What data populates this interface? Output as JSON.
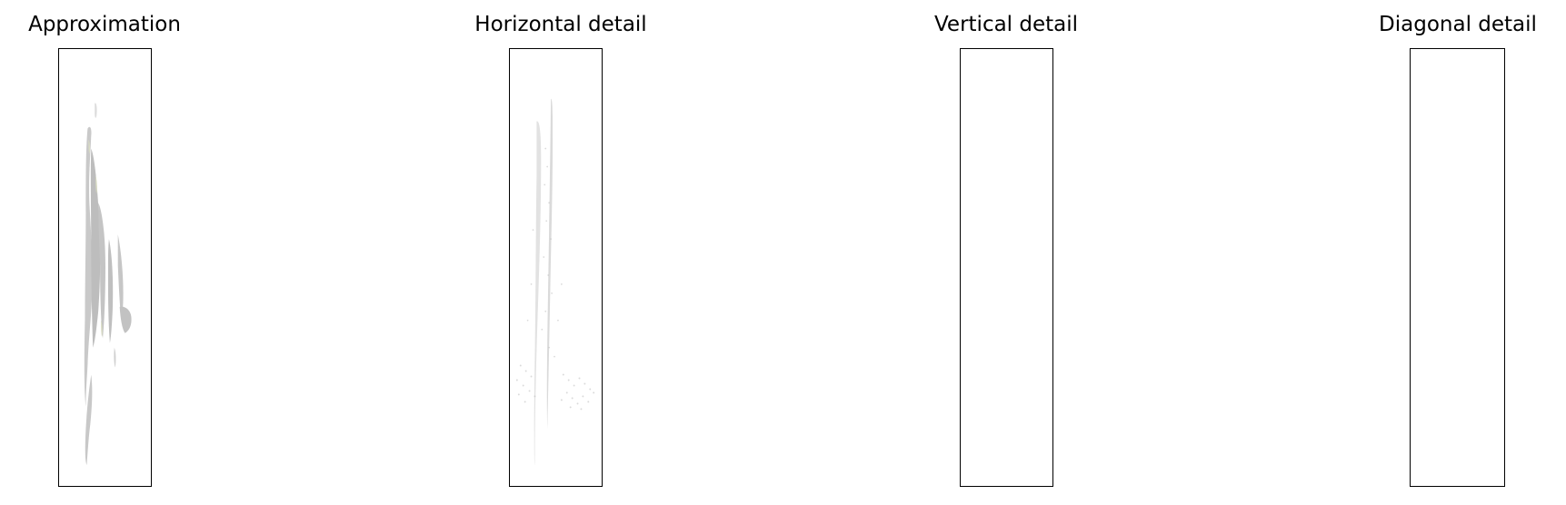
{
  "figure": {
    "panels": [
      {
        "title": "Approximation"
      },
      {
        "title": "Horizontal detail"
      },
      {
        "title": "Vertical detail"
      },
      {
        "title": "Diagonal detail"
      }
    ]
  }
}
